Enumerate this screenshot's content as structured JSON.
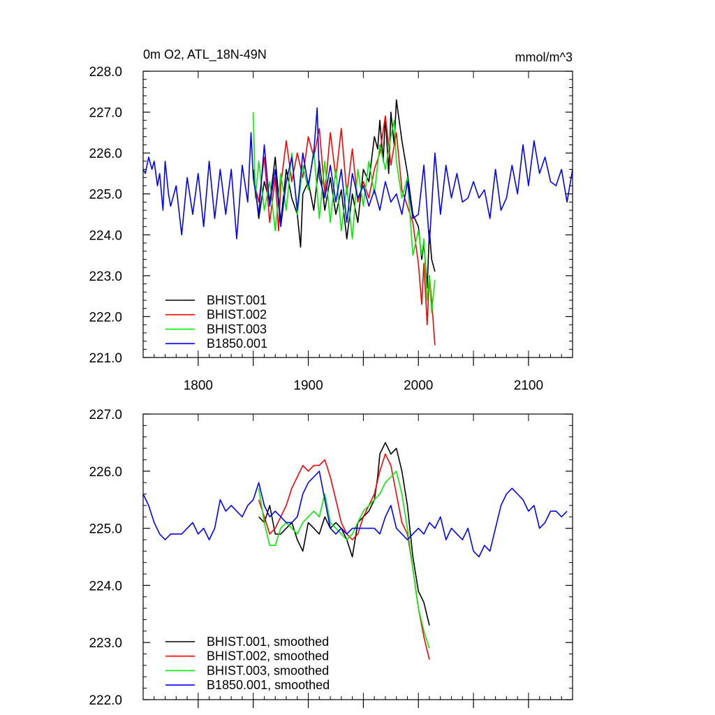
{
  "chart_data": [
    {
      "type": "line",
      "title": "0m O2, ATL_18N-49N",
      "units": "mmol/m^3",
      "xlim": [
        1750,
        2140
      ],
      "ylim": [
        221,
        228
      ],
      "xticks": [
        1800,
        1900,
        2000,
        2100
      ],
      "xtick_labels": [
        "1800",
        "1900",
        "2000",
        "2100"
      ],
      "yticks": [
        221,
        222,
        223,
        224,
        225,
        226,
        227,
        228
      ],
      "ytick_labels": [
        "221.0",
        "222.0",
        "223.0",
        "224.0",
        "225.0",
        "226.0",
        "227.0",
        "228.0"
      ],
      "legend": "bottom-left",
      "series": [
        {
          "name": "BHIST.001",
          "color": "#000000",
          "x": [
            1850,
            1855,
            1860,
            1865,
            1870,
            1875,
            1880,
            1885,
            1890,
            1893,
            1895,
            1900,
            1905,
            1910,
            1915,
            1920,
            1925,
            1930,
            1935,
            1940,
            1945,
            1950,
            1955,
            1960,
            1963,
            1965,
            1968,
            1970,
            1973,
            1975,
            1978,
            1980,
            1985,
            1990,
            1995,
            2000,
            2003,
            2005,
            2008,
            2010,
            2012,
            2015
          ],
          "y": [
            225.6,
            224.4,
            225.3,
            224.8,
            225.9,
            224.3,
            225.6,
            224.9,
            224.5,
            223.7,
            225.0,
            225.3,
            224.6,
            225.8,
            224.6,
            225.4,
            224.5,
            225.1,
            223.9,
            225.0,
            224.3,
            225.6,
            225.3,
            226.4,
            226.1,
            226.8,
            225.8,
            226.9,
            225.5,
            227.0,
            226.2,
            227.3,
            226.3,
            225.5,
            224.5,
            224.2,
            223.4,
            223.8,
            222.7,
            224.1,
            223.4,
            223.1
          ]
        },
        {
          "name": "BHIST.002",
          "color": "#ff0000",
          "x": [
            1850,
            1855,
            1860,
            1865,
            1870,
            1873,
            1875,
            1880,
            1885,
            1890,
            1895,
            1900,
            1905,
            1910,
            1915,
            1920,
            1925,
            1930,
            1935,
            1940,
            1945,
            1950,
            1955,
            1960,
            1965,
            1970,
            1975,
            1980,
            1985,
            1990,
            1995,
            2000,
            2003,
            2005,
            2008,
            2010,
            2012,
            2015
          ],
          "y": [
            225.4,
            224.8,
            225.9,
            224.3,
            225.4,
            224.1,
            225.2,
            226.3,
            225.3,
            226.0,
            225.4,
            226.4,
            225.9,
            226.6,
            225.0,
            226.5,
            225.4,
            226.6,
            225.0,
            226.1,
            224.8,
            225.3,
            224.9,
            225.6,
            226.0,
            226.9,
            225.7,
            226.5,
            225.1,
            224.7,
            224.3,
            223.3,
            222.3,
            223.3,
            221.8,
            223.0,
            222.4,
            221.3
          ]
        },
        {
          "name": "BHIST.003",
          "color": "#00ee00",
          "x": [
            1850,
            1852,
            1855,
            1860,
            1865,
            1870,
            1875,
            1880,
            1885,
            1890,
            1895,
            1900,
            1905,
            1910,
            1915,
            1920,
            1925,
            1930,
            1935,
            1940,
            1945,
            1950,
            1955,
            1960,
            1965,
            1970,
            1975,
            1978,
            1980,
            1985,
            1990,
            1995,
            2000,
            2003,
            2005,
            2008,
            2010,
            2012,
            2015
          ],
          "y": [
            227.0,
            224.9,
            225.8,
            224.6,
            225.3,
            224.1,
            225.5,
            224.6,
            226.0,
            224.5,
            225.7,
            225.1,
            226.1,
            224.4,
            225.8,
            224.3,
            225.6,
            224.1,
            225.2,
            223.9,
            225.6,
            224.7,
            225.8,
            225.0,
            226.2,
            225.6,
            226.4,
            226.8,
            225.8,
            224.9,
            225.4,
            223.5,
            224.1,
            223.5,
            223.9,
            222.4,
            223.0,
            222.1,
            222.9
          ]
        },
        {
          "name": "B1850.001",
          "color": "#0000ff",
          "x": [
            1750,
            1752,
            1755,
            1758,
            1760,
            1763,
            1765,
            1768,
            1770,
            1773,
            1775,
            1780,
            1785,
            1790,
            1795,
            1800,
            1805,
            1810,
            1815,
            1820,
            1825,
            1830,
            1835,
            1840,
            1845,
            1848,
            1850,
            1855,
            1860,
            1865,
            1870,
            1875,
            1880,
            1885,
            1890,
            1895,
            1900,
            1905,
            1908,
            1910,
            1915,
            1920,
            1925,
            1930,
            1935,
            1940,
            1945,
            1950,
            1955,
            1960,
            1965,
            1970,
            1975,
            1980,
            1985,
            1990,
            1995,
            2000,
            2005,
            2010,
            2015,
            2020,
            2025,
            2030,
            2035,
            2040,
            2045,
            2050,
            2055,
            2060,
            2065,
            2070,
            2075,
            2080,
            2085,
            2090,
            2095,
            2100,
            2105,
            2110,
            2115,
            2120,
            2125,
            2130,
            2135,
            2140
          ],
          "y": [
            225.6,
            225.5,
            225.9,
            225.6,
            225.8,
            225.2,
            225.5,
            224.6,
            225.8,
            225.0,
            224.7,
            225.2,
            224.0,
            225.4,
            224.5,
            225.5,
            224.2,
            225.8,
            224.4,
            225.6,
            224.5,
            225.6,
            223.9,
            225.7,
            224.8,
            226.5,
            225.4,
            224.5,
            226.2,
            224.7,
            225.6,
            224.2,
            225.3,
            225.9,
            224.6,
            226.0,
            225.2,
            226.0,
            227.1,
            225.4,
            224.9,
            225.7,
            224.8,
            225.6,
            224.3,
            225.5,
            224.9,
            225.2,
            224.7,
            225.1,
            224.6,
            225.3,
            224.8,
            225.0,
            224.5,
            225.3,
            224.4,
            224.5,
            225.7,
            223.8,
            226.0,
            224.5,
            225.7,
            224.9,
            225.5,
            224.8,
            224.9,
            225.3,
            224.9,
            225.1,
            224.4,
            225.6,
            224.6,
            224.9,
            225.7,
            225.0,
            226.2,
            225.2,
            226.3,
            225.5,
            225.9,
            225.3,
            225.2,
            225.6,
            224.8,
            225.6
          ]
        }
      ]
    },
    {
      "type": "line",
      "xlim": [
        1750,
        2140
      ],
      "ylim": [
        222,
        227
      ],
      "yticks": [
        222,
        223,
        224,
        225,
        226,
        227
      ],
      "ytick_labels": [
        "222.0",
        "223.0",
        "224.0",
        "225.0",
        "226.0",
        "227.0"
      ],
      "legend": "bottom-left",
      "series": [
        {
          "name": "BHIST.001, smoothed",
          "color": "#000000",
          "x": [
            1855,
            1860,
            1865,
            1870,
            1875,
            1880,
            1885,
            1890,
            1895,
            1900,
            1905,
            1910,
            1915,
            1920,
            1925,
            1930,
            1935,
            1940,
            1945,
            1950,
            1955,
            1960,
            1963,
            1965,
            1970,
            1975,
            1980,
            1985,
            1990,
            1995,
            2000,
            2005,
            2010
          ],
          "y": [
            225.2,
            225.1,
            225.4,
            224.9,
            224.9,
            225.0,
            225.1,
            224.8,
            224.6,
            225.1,
            225.0,
            224.9,
            225.2,
            225.0,
            225.1,
            225.0,
            224.8,
            224.5,
            225.1,
            225.2,
            225.3,
            225.5,
            225.9,
            226.3,
            226.5,
            226.3,
            226.4,
            226.0,
            225.4,
            224.5,
            223.9,
            223.7,
            223.3
          ]
        },
        {
          "name": "BHIST.002, smoothed",
          "color": "#ff0000",
          "x": [
            1855,
            1860,
            1865,
            1870,
            1875,
            1880,
            1885,
            1890,
            1895,
            1900,
            1905,
            1910,
            1915,
            1920,
            1925,
            1930,
            1935,
            1940,
            1945,
            1950,
            1955,
            1960,
            1965,
            1970,
            1975,
            1980,
            1985,
            1990,
            1995,
            2000,
            2005,
            2010
          ],
          "y": [
            225.5,
            225.2,
            224.9,
            225.0,
            225.2,
            225.4,
            225.7,
            225.9,
            226.1,
            226.0,
            226.1,
            226.1,
            226.2,
            225.9,
            225.5,
            225.1,
            224.9,
            224.8,
            224.9,
            225.2,
            225.4,
            225.6,
            226.0,
            226.3,
            226.1,
            225.6,
            225.1,
            224.9,
            224.3,
            223.6,
            223.1,
            222.7
          ]
        },
        {
          "name": "BHIST.003, smoothed",
          "color": "#00ee00",
          "x": [
            1855,
            1860,
            1865,
            1870,
            1875,
            1880,
            1885,
            1890,
            1895,
            1900,
            1905,
            1910,
            1915,
            1920,
            1925,
            1930,
            1935,
            1940,
            1945,
            1950,
            1955,
            1960,
            1965,
            1970,
            1975,
            1980,
            1985,
            1990,
            1995,
            2000,
            2005,
            2010
          ],
          "y": [
            225.7,
            225.1,
            224.7,
            224.7,
            225.0,
            225.1,
            225.0,
            224.9,
            225.1,
            225.2,
            225.3,
            225.2,
            225.6,
            225.1,
            225.0,
            224.9,
            224.8,
            224.9,
            225.1,
            225.3,
            225.4,
            225.5,
            225.6,
            225.8,
            225.9,
            226.0,
            225.6,
            225.0,
            224.3,
            223.6,
            223.2,
            222.9
          ]
        },
        {
          "name": "B1850.001, smoothed",
          "color": "#0000ff",
          "x": [
            1750,
            1755,
            1760,
            1765,
            1770,
            1775,
            1780,
            1785,
            1790,
            1795,
            1800,
            1805,
            1810,
            1815,
            1820,
            1825,
            1830,
            1835,
            1840,
            1845,
            1850,
            1855,
            1860,
            1865,
            1870,
            1875,
            1880,
            1885,
            1890,
            1895,
            1900,
            1905,
            1910,
            1915,
            1920,
            1925,
            1930,
            1935,
            1940,
            1945,
            1950,
            1955,
            1960,
            1965,
            1970,
            1975,
            1980,
            1985,
            1990,
            1995,
            2000,
            2005,
            2010,
            2015,
            2020,
            2025,
            2030,
            2035,
            2040,
            2045,
            2050,
            2055,
            2060,
            2065,
            2070,
            2075,
            2080,
            2085,
            2090,
            2095,
            2100,
            2105,
            2110,
            2115,
            2120,
            2125,
            2130,
            2135
          ],
          "y": [
            225.6,
            225.4,
            225.1,
            224.9,
            224.8,
            224.9,
            224.9,
            224.9,
            225.0,
            225.1,
            224.9,
            225.0,
            224.8,
            225.0,
            225.5,
            225.3,
            225.4,
            225.3,
            225.2,
            225.4,
            225.5,
            225.8,
            225.4,
            225.2,
            225.3,
            225.2,
            225.1,
            225.1,
            225.2,
            225.6,
            225.8,
            225.9,
            226.0,
            225.5,
            225.0,
            224.9,
            225.0,
            224.9,
            225.0,
            225.0,
            225.0,
            225.0,
            225.0,
            224.9,
            225.2,
            225.4,
            225.0,
            224.9,
            224.8,
            224.9,
            225.0,
            224.9,
            225.1,
            225.0,
            225.2,
            224.8,
            225.0,
            224.9,
            224.8,
            225.0,
            224.6,
            224.5,
            224.7,
            224.6,
            225.0,
            225.4,
            225.6,
            225.7,
            225.6,
            225.5,
            225.3,
            225.4,
            225.0,
            225.1,
            225.3,
            225.3,
            225.2,
            225.3
          ]
        }
      ]
    }
  ]
}
